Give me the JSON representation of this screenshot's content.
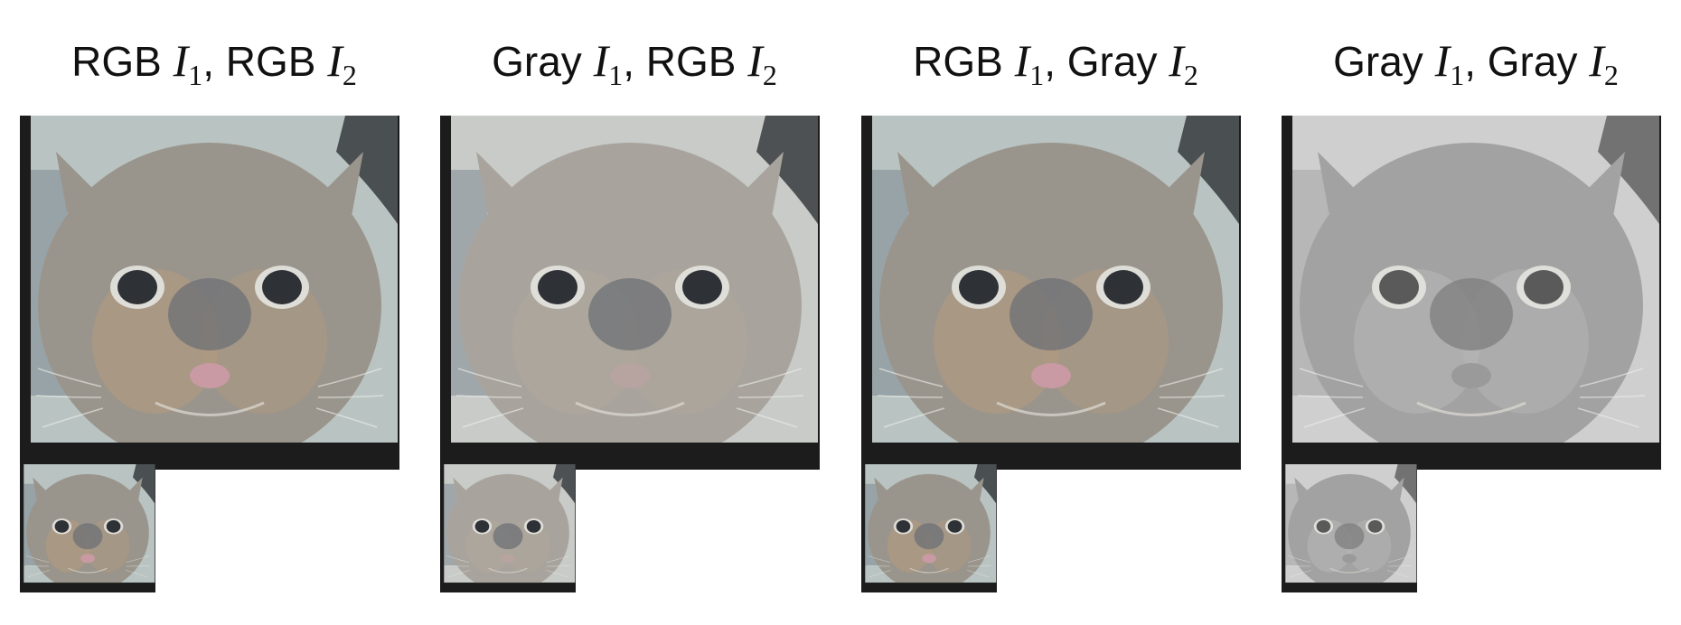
{
  "panels": [
    {
      "title": {
        "a": "RGB",
        "a_var": "I",
        "a_sub": "1",
        "sep": ",",
        "b": "RGB",
        "b_var": "I",
        "b_sub": "2"
      },
      "mode": "rgb-rgb"
    },
    {
      "title": {
        "a": "Gray",
        "a_var": "I",
        "a_sub": "1",
        "sep": ",",
        "b": "RGB",
        "b_var": "I",
        "b_sub": "2"
      },
      "mode": "gray-rgb"
    },
    {
      "title": {
        "a": "RGB",
        "a_var": "I",
        "a_sub": "1",
        "sep": ",",
        "b": "Gray",
        "b_var": "I",
        "b_sub": "2"
      },
      "mode": "rgb-gray"
    },
    {
      "title": {
        "a": "Gray",
        "a_var": "I",
        "a_sub": "1",
        "sep": ",",
        "b": "Gray",
        "b_var": "I",
        "b_sub": "2"
      },
      "mode": "gray-gray"
    }
  ],
  "colors": {
    "frame": "#1c1c1c",
    "rgb_fur": "#9a958c",
    "rgb_warm": "#b49a7e",
    "gray_fur": "#a2a2a2",
    "gray_light": "#b8b8b8",
    "nose_rgb": "#c99aa3",
    "nose_gray": "#9a9a9a"
  },
  "icons": {
    "big_image": "hybrid-cat-dog-image",
    "small_image": "hybrid-cat-dog-thumbnail"
  }
}
